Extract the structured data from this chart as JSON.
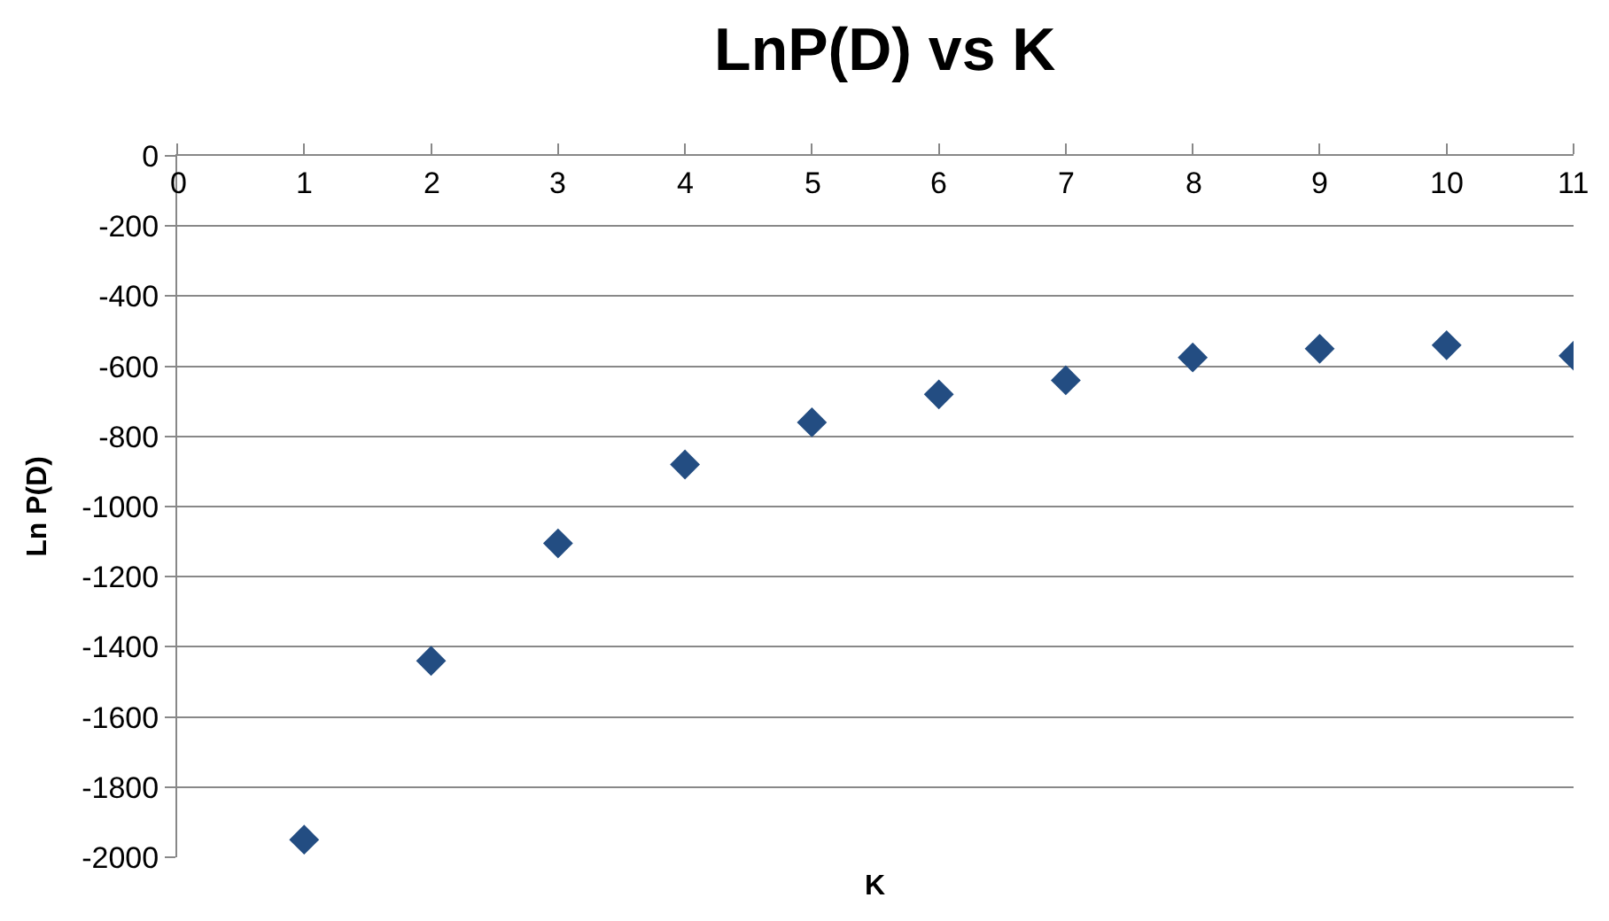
{
  "chart_data": {
    "type": "scatter",
    "title": "LnP(D) vs K",
    "xlabel": "K",
    "ylabel": "Ln P(D)",
    "x": [
      1,
      2,
      3,
      4,
      5,
      6,
      7,
      8,
      9,
      10,
      11
    ],
    "series": [
      {
        "color": "#234d82",
        "values": [
          -1950,
          -1440,
          -1105,
          -880,
          -760,
          -680,
          -640,
          -575,
          -550,
          -540,
          -570
        ]
      }
    ],
    "xlim": [
      0,
      11
    ],
    "xticks": [
      0,
      1,
      2,
      3,
      4,
      5,
      6,
      7,
      8,
      9,
      10,
      11
    ],
    "ylim": [
      -2000,
      0
    ],
    "yticks": [
      -2000,
      -1800,
      -1600,
      -1400,
      -1200,
      -1000,
      -800,
      -600,
      -400,
      -200,
      0
    ],
    "grid": "y",
    "marker": "diamond"
  }
}
